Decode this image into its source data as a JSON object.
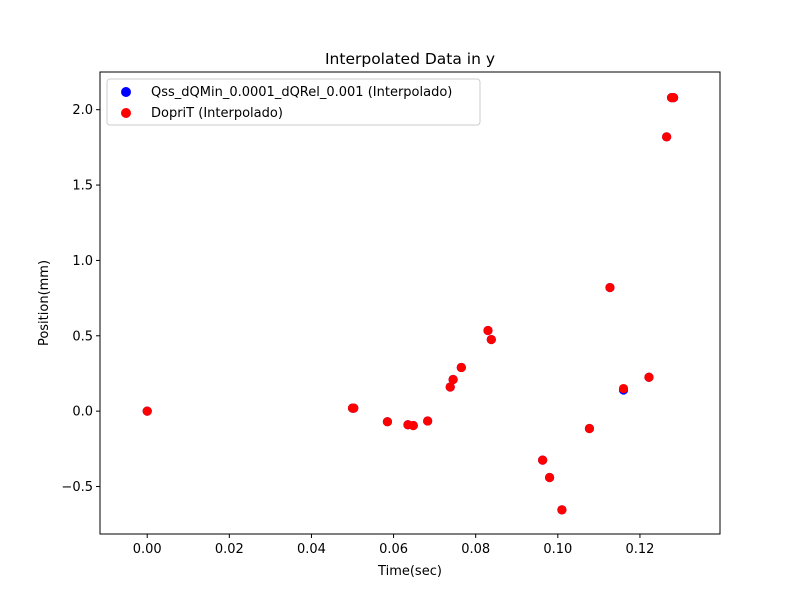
{
  "chart_data": {
    "type": "scatter",
    "title": "Interpolated Data in y",
    "xlabel": "Time(sec)",
    "ylabel": "Position(mm)",
    "xlim": [
      -0.0115,
      0.1395
    ],
    "ylim": [
      -0.815,
      2.25
    ],
    "xticks": [
      0.0,
      0.02,
      0.04,
      0.06,
      0.08,
      0.1,
      0.12
    ],
    "xtick_labels": [
      "0.00",
      "0.02",
      "0.04",
      "0.06",
      "0.08",
      "0.10",
      "0.12"
    ],
    "yticks": [
      -0.5,
      0.0,
      0.5,
      1.0,
      1.5,
      2.0
    ],
    "ytick_labels": [
      "−0.5",
      "0.0",
      "0.5",
      "1.0",
      "1.5",
      "2.0"
    ],
    "grid": false,
    "legend_position": "top-left",
    "series": [
      {
        "name": "Qss_dQMin_0.0001_dQRel_0.001 (Interpolado)",
        "color": "#0000ff",
        "points": [
          [
            0.0,
            0.0
          ],
          [
            0.05,
            0.02
          ],
          [
            0.0503,
            0.02
          ],
          [
            0.0585,
            -0.07
          ],
          [
            0.0635,
            -0.09
          ],
          [
            0.0648,
            -0.095
          ],
          [
            0.0683,
            -0.065
          ],
          [
            0.0738,
            0.16
          ],
          [
            0.0745,
            0.21
          ],
          [
            0.0765,
            0.29
          ],
          [
            0.083,
            0.535
          ],
          [
            0.0838,
            0.475
          ],
          [
            0.0963,
            -0.325
          ],
          [
            0.098,
            -0.44
          ],
          [
            0.101,
            -0.655
          ],
          [
            0.1077,
            -0.115
          ],
          [
            0.1127,
            0.82
          ],
          [
            0.116,
            0.14
          ],
          [
            0.1222,
            0.225
          ],
          [
            0.1265,
            1.82
          ],
          [
            0.1277,
            2.08
          ],
          [
            0.1282,
            2.08
          ]
        ]
      },
      {
        "name": "DopriT (Interpolado)",
        "color": "#ff0000",
        "points": [
          [
            0.0,
            0.0
          ],
          [
            0.05,
            0.02
          ],
          [
            0.0503,
            0.02
          ],
          [
            0.0585,
            -0.07
          ],
          [
            0.0635,
            -0.09
          ],
          [
            0.0648,
            -0.095
          ],
          [
            0.0683,
            -0.065
          ],
          [
            0.0738,
            0.16
          ],
          [
            0.0745,
            0.21
          ],
          [
            0.0765,
            0.29
          ],
          [
            0.083,
            0.535
          ],
          [
            0.0838,
            0.475
          ],
          [
            0.0963,
            -0.325
          ],
          [
            0.098,
            -0.44
          ],
          [
            0.101,
            -0.655
          ],
          [
            0.1077,
            -0.115
          ],
          [
            0.1127,
            0.82
          ],
          [
            0.116,
            0.15
          ],
          [
            0.1222,
            0.225
          ],
          [
            0.1265,
            1.82
          ],
          [
            0.1277,
            2.08
          ],
          [
            0.1282,
            2.08
          ]
        ]
      }
    ]
  }
}
